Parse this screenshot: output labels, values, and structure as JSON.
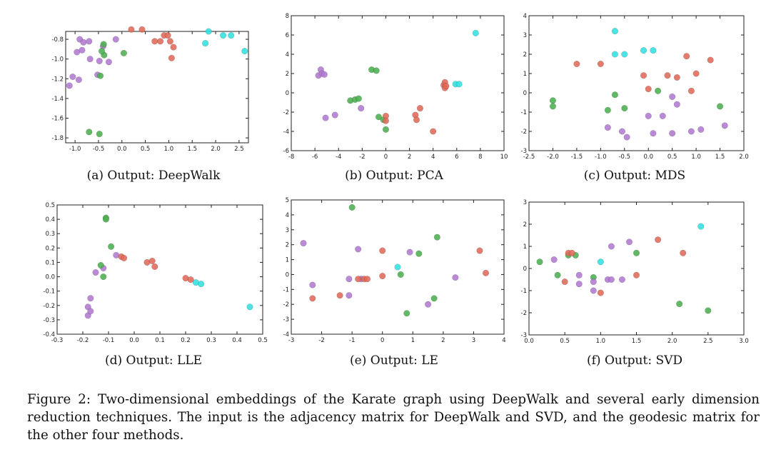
{
  "figure": {
    "caption": "Figure 2:  Two-dimensional embeddings of the Karate graph using DeepWalk and several early dimension reduction techniques.  The input is the adjacency matrix for DeepWalk and SVD, and the geodesic matrix for the other four methods."
  },
  "colors": {
    "purple": "#b07ad0",
    "green": "#4caf50",
    "red": "#e06a5a",
    "cyan": "#31e0e0"
  },
  "chart_data": [
    {
      "type": "scatter",
      "id": "a",
      "caption": "(a) Output:  DeepWalk",
      "xlim": [
        -1.2,
        2.7
      ],
      "ylim": [
        -1.85,
        -0.72
      ],
      "xticks": [
        -1.0,
        -0.5,
        0.0,
        0.5,
        1.0,
        1.5,
        2.0,
        2.5
      ],
      "xtick_labels": [
        "-1.0",
        "-0.5",
        "0.0",
        "0.5",
        "1.0",
        "1.5",
        "2.0",
        "2.5"
      ],
      "yticks": [
        -0.8,
        -1.0,
        -1.2,
        -1.4,
        -1.6,
        -1.8
      ],
      "ytick_labels": [
        "-0.8",
        "-1.0",
        "-1.2",
        "-1.4",
        "-1.6",
        "-1.8"
      ],
      "points": [
        [
          -1.12,
          -1.27,
          "purple"
        ],
        [
          -1.05,
          -1.18,
          "purple"
        ],
        [
          -0.92,
          -1.21,
          "purple"
        ],
        [
          -0.96,
          -0.93,
          "purple"
        ],
        [
          -0.9,
          -0.8,
          "purple"
        ],
        [
          -0.82,
          -0.83,
          "purple"
        ],
        [
          -0.85,
          -0.91,
          "purple"
        ],
        [
          -0.7,
          -0.82,
          "purple"
        ],
        [
          -0.68,
          -1.0,
          "purple"
        ],
        [
          -0.52,
          -1.16,
          "purple"
        ],
        [
          -0.48,
          -1.02,
          "purple"
        ],
        [
          -0.4,
          -0.87,
          "purple"
        ],
        [
          -0.28,
          -1.03,
          "purple"
        ],
        [
          -0.13,
          -0.8,
          "purple"
        ],
        [
          -0.38,
          -0.96,
          "green"
        ],
        [
          -0.46,
          -1.17,
          "green"
        ],
        [
          0.04,
          -0.94,
          "green"
        ],
        [
          -0.7,
          -1.74,
          "green"
        ],
        [
          -0.48,
          -1.76,
          "green"
        ],
        [
          -0.43,
          -0.92,
          "green"
        ],
        [
          -0.39,
          -0.85,
          "green"
        ],
        [
          0.2,
          -0.7,
          "red"
        ],
        [
          0.43,
          -0.7,
          "red"
        ],
        [
          0.7,
          -0.82,
          "red"
        ],
        [
          0.82,
          -0.82,
          "red"
        ],
        [
          0.9,
          -0.76,
          "red"
        ],
        [
          0.98,
          -0.76,
          "red"
        ],
        [
          1.03,
          -0.82,
          "red"
        ],
        [
          1.06,
          -0.99,
          "red"
        ],
        [
          1.1,
          -0.88,
          "red"
        ],
        [
          1.85,
          -0.72,
          "cyan"
        ],
        [
          1.78,
          -0.84,
          "cyan"
        ],
        [
          2.16,
          -0.76,
          "cyan"
        ],
        [
          2.33,
          -0.76,
          "cyan"
        ],
        [
          2.62,
          -0.92,
          "cyan"
        ]
      ]
    },
    {
      "type": "scatter",
      "id": "b",
      "caption": "(b) Output:  PCA",
      "xlim": [
        -8,
        10
      ],
      "ylim": [
        -6,
        8
      ],
      "xticks": [
        -8,
        -6,
        -4,
        -2,
        0,
        2,
        4,
        6,
        8,
        10
      ],
      "xtick_labels": [
        "-8",
        "-6",
        "-4",
        "-2",
        "0",
        "2",
        "4",
        "6",
        "8",
        "10"
      ],
      "yticks": [
        8,
        6,
        4,
        2,
        0,
        -2,
        -4,
        -6
      ],
      "ytick_labels": [
        "8",
        "6",
        "4",
        "2",
        "0",
        "-2",
        "-4",
        "-6"
      ],
      "points": [
        [
          -5.7,
          1.8,
          "purple"
        ],
        [
          -5.5,
          2.4,
          "purple"
        ],
        [
          -5.4,
          2.0,
          "purple"
        ],
        [
          -5.2,
          1.9,
          "purple"
        ],
        [
          -5.1,
          -2.6,
          "purple"
        ],
        [
          -4.3,
          -2.3,
          "purple"
        ],
        [
          -2.1,
          -1.6,
          "purple"
        ],
        [
          -3.0,
          -0.8,
          "green"
        ],
        [
          -2.6,
          -0.7,
          "green"
        ],
        [
          -2.3,
          -0.6,
          "green"
        ],
        [
          -1.2,
          2.4,
          "green"
        ],
        [
          -0.8,
          2.3,
          "green"
        ],
        [
          -0.6,
          -2.5,
          "green"
        ],
        [
          -0.2,
          -2.8,
          "green"
        ],
        [
          0.0,
          -3.8,
          "green"
        ],
        [
          0.0,
          -2.4,
          "red"
        ],
        [
          0.0,
          -2.9,
          "red"
        ],
        [
          2.5,
          -2.3,
          "red"
        ],
        [
          2.6,
          -2.8,
          "red"
        ],
        [
          2.9,
          -1.6,
          "red"
        ],
        [
          4.0,
          -4.0,
          "red"
        ],
        [
          4.9,
          0.8,
          "red"
        ],
        [
          5.0,
          1.1,
          "red"
        ],
        [
          5.0,
          0.5,
          "red"
        ],
        [
          5.1,
          0.7,
          "red"
        ],
        [
          5.9,
          0.9,
          "cyan"
        ],
        [
          6.2,
          0.9,
          "cyan"
        ],
        [
          7.6,
          6.2,
          "cyan"
        ]
      ]
    },
    {
      "type": "scatter",
      "id": "c",
      "caption": "(c) Output:  MDS",
      "xlim": [
        -2.5,
        2.0
      ],
      "ylim": [
        -3,
        4
      ],
      "xticks": [
        -2.5,
        -2.0,
        -1.5,
        -1.0,
        -0.5,
        0.0,
        0.5,
        1.0,
        1.5,
        2.0
      ],
      "xtick_labels": [
        "-2.5",
        "-2.0",
        "-1.5",
        "-1.0",
        "-0.5",
        "0.0",
        "0.5",
        "1.0",
        "1.5",
        "2.0"
      ],
      "yticks": [
        4,
        3,
        2,
        1,
        0,
        -1,
        -2,
        -3
      ],
      "ytick_labels": [
        "4",
        "3",
        "2",
        "1",
        "0",
        "-1",
        "-2",
        "-3"
      ],
      "points": [
        [
          -2.0,
          -0.4,
          "green"
        ],
        [
          -2.0,
          -0.7,
          "green"
        ],
        [
          -0.85,
          -0.9,
          "green"
        ],
        [
          -0.7,
          -0.1,
          "green"
        ],
        [
          -0.5,
          -0.8,
          "green"
        ],
        [
          0.2,
          0.1,
          "green"
        ],
        [
          1.5,
          -0.7,
          "green"
        ],
        [
          -0.85,
          -1.8,
          "purple"
        ],
        [
          -0.55,
          -2.0,
          "purple"
        ],
        [
          -0.45,
          -2.3,
          "purple"
        ],
        [
          0.0,
          -1.2,
          "purple"
        ],
        [
          0.1,
          -2.1,
          "purple"
        ],
        [
          0.3,
          -1.2,
          "purple"
        ],
        [
          0.5,
          -2.1,
          "purple"
        ],
        [
          0.5,
          -0.2,
          "purple"
        ],
        [
          0.6,
          -0.6,
          "purple"
        ],
        [
          0.9,
          -2.0,
          "purple"
        ],
        [
          1.1,
          -1.9,
          "purple"
        ],
        [
          1.6,
          -1.7,
          "purple"
        ],
        [
          -1.5,
          1.5,
          "red"
        ],
        [
          -1.0,
          1.5,
          "red"
        ],
        [
          -0.1,
          0.9,
          "red"
        ],
        [
          0.0,
          0.2,
          "red"
        ],
        [
          0.4,
          0.9,
          "red"
        ],
        [
          0.6,
          0.8,
          "red"
        ],
        [
          0.8,
          1.9,
          "red"
        ],
        [
          0.9,
          0.1,
          "red"
        ],
        [
          1.0,
          1.0,
          "red"
        ],
        [
          1.3,
          1.7,
          "red"
        ],
        [
          -0.7,
          3.2,
          "cyan"
        ],
        [
          -0.7,
          2.0,
          "cyan"
        ],
        [
          -0.5,
          2.0,
          "cyan"
        ],
        [
          -0.1,
          2.2,
          "cyan"
        ],
        [
          0.1,
          2.2,
          "cyan"
        ]
      ]
    },
    {
      "type": "scatter",
      "id": "d",
      "caption": "(d) Output:  LLE",
      "xlim": [
        -0.3,
        0.5
      ],
      "ylim": [
        -0.4,
        0.5
      ],
      "xticks": [
        -0.3,
        -0.2,
        -0.1,
        0.0,
        0.1,
        0.2,
        0.3,
        0.4,
        0.5
      ],
      "xtick_labels": [
        "-0.3",
        "-0.2",
        "-0.1",
        "0.0",
        "0.1",
        "0.2",
        "0.3",
        "0.4",
        "0.5"
      ],
      "yticks": [
        0.5,
        0.4,
        0.3,
        0.2,
        0.1,
        0.0,
        -0.1,
        -0.2,
        -0.3,
        -0.4
      ],
      "ytick_labels": [
        "0.5",
        "0.4",
        "0.3",
        "0.2",
        "0.1",
        "0.0",
        "-0.1",
        "-0.2",
        "-0.3",
        "-0.4"
      ],
      "points": [
        [
          -0.17,
          -0.15,
          "purple"
        ],
        [
          -0.18,
          -0.21,
          "purple"
        ],
        [
          -0.18,
          -0.27,
          "purple"
        ],
        [
          -0.17,
          -0.24,
          "purple"
        ],
        [
          -0.15,
          0.03,
          "purple"
        ],
        [
          -0.12,
          0.06,
          "purple"
        ],
        [
          -0.07,
          0.15,
          "purple"
        ],
        [
          -0.12,
          0.0,
          "green"
        ],
        [
          -0.13,
          0.08,
          "green"
        ],
        [
          -0.11,
          0.41,
          "green"
        ],
        [
          -0.11,
          0.4,
          "green"
        ],
        [
          -0.09,
          0.21,
          "green"
        ],
        [
          -0.05,
          0.14,
          "red"
        ],
        [
          -0.04,
          0.13,
          "red"
        ],
        [
          0.05,
          0.1,
          "red"
        ],
        [
          0.07,
          0.11,
          "red"
        ],
        [
          0.08,
          0.07,
          "red"
        ],
        [
          0.2,
          -0.01,
          "red"
        ],
        [
          0.22,
          -0.02,
          "red"
        ],
        [
          0.24,
          -0.04,
          "cyan"
        ],
        [
          0.26,
          -0.05,
          "cyan"
        ],
        [
          0.45,
          -0.21,
          "cyan"
        ]
      ]
    },
    {
      "type": "scatter",
      "id": "e",
      "caption": "(e) Output:  LE",
      "xlim": [
        -3,
        4
      ],
      "ylim": [
        -4,
        5
      ],
      "xticks": [
        -3,
        -2,
        -1,
        0,
        1,
        2,
        3,
        4
      ],
      "xtick_labels": [
        "-3",
        "-2",
        "-1",
        "0",
        "1",
        "2",
        "3",
        "4"
      ],
      "yticks": [
        5,
        4,
        3,
        2,
        1,
        0,
        -1,
        -2,
        -3,
        -4
      ],
      "ytick_labels": [
        "5",
        "4",
        "3",
        "2",
        "1",
        "0",
        "-1",
        "-2",
        "-3",
        "-4"
      ],
      "points": [
        [
          -2.6,
          2.1,
          "purple"
        ],
        [
          -2.3,
          -0.7,
          "purple"
        ],
        [
          -0.8,
          1.7,
          "purple"
        ],
        [
          -1.1,
          -1.4,
          "purple"
        ],
        [
          -0.7,
          -0.3,
          "purple"
        ],
        [
          0.9,
          1.5,
          "purple"
        ],
        [
          1.5,
          -2.0,
          "purple"
        ],
        [
          2.4,
          -0.2,
          "purple"
        ],
        [
          -1.1,
          -0.3,
          "purple"
        ],
        [
          -1.0,
          4.5,
          "green"
        ],
        [
          0.6,
          0.0,
          "green"
        ],
        [
          0.8,
          -2.6,
          "green"
        ],
        [
          1.2,
          1.4,
          "green"
        ],
        [
          1.7,
          -1.6,
          "green"
        ],
        [
          1.8,
          2.5,
          "green"
        ],
        [
          -2.3,
          -1.6,
          "red"
        ],
        [
          -1.4,
          -1.4,
          "red"
        ],
        [
          -0.8,
          -0.3,
          "red"
        ],
        [
          -0.6,
          -0.3,
          "red"
        ],
        [
          -0.5,
          -0.3,
          "red"
        ],
        [
          0.0,
          1.6,
          "red"
        ],
        [
          0.0,
          -0.1,
          "red"
        ],
        [
          3.2,
          1.6,
          "red"
        ],
        [
          3.4,
          0.1,
          "red"
        ],
        [
          0.5,
          0.5,
          "cyan"
        ]
      ]
    },
    {
      "type": "scatter",
      "id": "f",
      "caption": "(f) Output:  SVD",
      "xlim": [
        0.0,
        3.0
      ],
      "ylim": [
        -3,
        3
      ],
      "xticks": [
        0.0,
        0.5,
        1.0,
        1.5,
        2.0,
        2.5,
        3.0
      ],
      "xtick_labels": [
        "0.0",
        "0.5",
        "1.0",
        "1.5",
        "2.0",
        "2.5",
        "3.0"
      ],
      "yticks": [
        3,
        2,
        1,
        0,
        -1,
        -2,
        -3
      ],
      "ytick_labels": [
        "3",
        "2",
        "1",
        "0",
        "-1",
        "-2",
        "-3"
      ],
      "points": [
        [
          0.15,
          0.3,
          "green"
        ],
        [
          0.4,
          -0.3,
          "green"
        ],
        [
          0.55,
          0.6,
          "green"
        ],
        [
          0.65,
          0.6,
          "green"
        ],
        [
          0.9,
          -0.4,
          "green"
        ],
        [
          1.5,
          0.7,
          "green"
        ],
        [
          2.1,
          -1.6,
          "green"
        ],
        [
          2.5,
          -1.9,
          "green"
        ],
        [
          0.35,
          0.4,
          "purple"
        ],
        [
          0.7,
          -0.3,
          "purple"
        ],
        [
          0.7,
          -0.7,
          "purple"
        ],
        [
          0.9,
          -0.6,
          "purple"
        ],
        [
          0.9,
          -1.0,
          "purple"
        ],
        [
          1.1,
          -0.5,
          "purple"
        ],
        [
          1.15,
          1.0,
          "purple"
        ],
        [
          1.3,
          -0.5,
          "purple"
        ],
        [
          1.4,
          1.2,
          "purple"
        ],
        [
          1.15,
          -0.5,
          "purple"
        ],
        [
          0.5,
          -0.6,
          "red"
        ],
        [
          0.55,
          0.7,
          "red"
        ],
        [
          0.6,
          0.7,
          "red"
        ],
        [
          1.0,
          -1.1,
          "red"
        ],
        [
          1.5,
          -0.3,
          "red"
        ],
        [
          1.8,
          1.3,
          "red"
        ],
        [
          2.15,
          0.7,
          "red"
        ],
        [
          1.0,
          0.3,
          "cyan"
        ],
        [
          2.4,
          1.9,
          "cyan"
        ]
      ]
    }
  ]
}
